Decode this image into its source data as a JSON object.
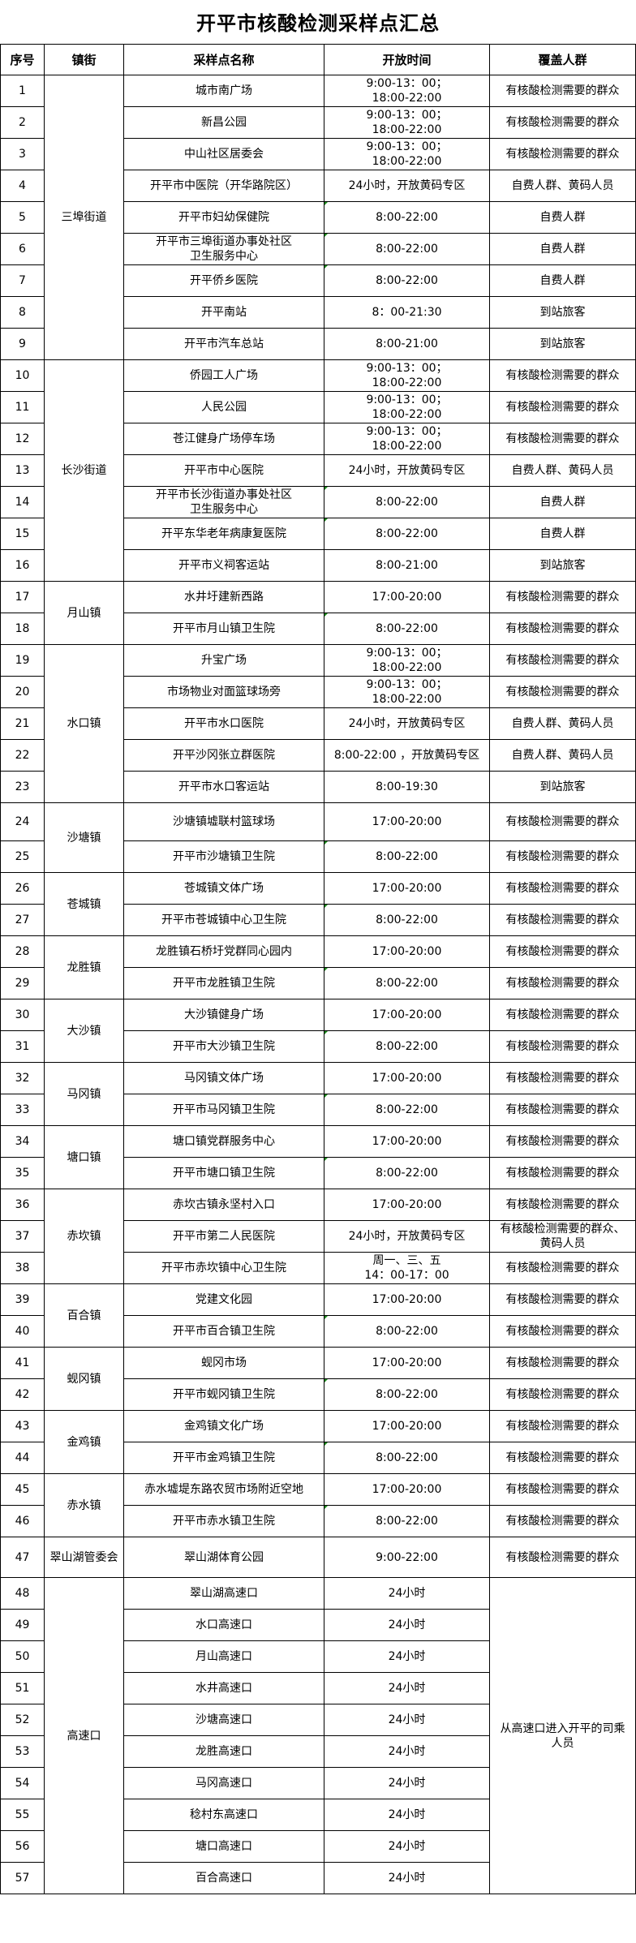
{
  "title": "开平市核酸检测采样点汇总",
  "headers": [
    "序号",
    "镇街",
    "采样点名称",
    "开放时间",
    "覆盖人群"
  ],
  "groups": [
    {
      "town": "三埠街道",
      "sites": [
        {
          "no": "1",
          "name": "城市南广场",
          "hours": "9:00-13：00；\n18:00-22:00",
          "coverage": "有核酸检测需要的群众",
          "mark": false
        },
        {
          "no": "2",
          "name": "新昌公园",
          "hours": "9:00-13：00；\n18:00-22:00",
          "coverage": "有核酸检测需要的群众",
          "mark": false
        },
        {
          "no": "3",
          "name": "中山社区居委会",
          "hours": "9:00-13：00；\n18:00-22:00",
          "coverage": "有核酸检测需要的群众",
          "mark": false
        },
        {
          "no": "4",
          "name": "开平市中医院（开华路院区）",
          "hours": "24小时，开放黄码专区",
          "coverage": "自费人群、黄码人员",
          "mark": false
        },
        {
          "no": "5",
          "name": "开平市妇幼保健院",
          "hours": "8:00-22:00",
          "coverage": "自费人群",
          "mark": true
        },
        {
          "no": "6",
          "name": "开平市三埠街道办事处社区\n卫生服务中心",
          "hours": "8:00-22:00",
          "coverage": "自费人群",
          "mark": true
        },
        {
          "no": "7",
          "name": "开平侨乡医院",
          "hours": "8:00-22:00",
          "coverage": "自费人群",
          "mark": true
        },
        {
          "no": "8",
          "name": "开平南站",
          "hours": "8：00-21:30",
          "coverage": "到站旅客",
          "mark": false
        },
        {
          "no": "9",
          "name": "开平市汽车总站",
          "hours": "8:00-21:00",
          "coverage": "到站旅客",
          "mark": false
        }
      ]
    },
    {
      "town": "长沙街道",
      "sites": [
        {
          "no": "10",
          "name": "侨园工人广场",
          "hours": "9:00-13：00；\n18:00-22:00",
          "coverage": "有核酸检测需要的群众",
          "mark": false
        },
        {
          "no": "11",
          "name": "人民公园",
          "hours": "9:00-13：00；\n18:00-22:00",
          "coverage": "有核酸检测需要的群众",
          "mark": false
        },
        {
          "no": "12",
          "name": "苍江健身广场停车场",
          "hours": "9:00-13：00；\n18:00-22:00",
          "coverage": "有核酸检测需要的群众",
          "mark": false
        },
        {
          "no": "13",
          "name": "开平市中心医院",
          "hours": "24小时，开放黄码专区",
          "coverage": "自费人群、黄码人员",
          "mark": false
        },
        {
          "no": "14",
          "name": "开平市长沙街道办事处社区\n卫生服务中心",
          "hours": "8:00-22:00",
          "coverage": "自费人群",
          "mark": true
        },
        {
          "no": "15",
          "name": "开平东华老年病康复医院",
          "hours": "8:00-22:00",
          "coverage": "自费人群",
          "mark": true
        },
        {
          "no": "16",
          "name": "开平市义祠客运站",
          "hours": "8:00-21:00",
          "coverage": "到站旅客",
          "mark": false
        }
      ]
    },
    {
      "town": "月山镇",
      "sites": [
        {
          "no": "17",
          "name": "水井圩建新西路",
          "hours": "17:00-20:00",
          "coverage": "有核酸检测需要的群众",
          "mark": false
        },
        {
          "no": "18",
          "name": "开平市月山镇卫生院",
          "hours": "8:00-22:00",
          "coverage": "有核酸检测需要的群众",
          "mark": true
        }
      ]
    },
    {
      "town": "水口镇",
      "sites": [
        {
          "no": "19",
          "name": "升宝广场",
          "hours": "9:00-13：00；\n18:00-22:00",
          "coverage": "有核酸检测需要的群众",
          "mark": false
        },
        {
          "no": "20",
          "name": "市场物业对面篮球场旁",
          "hours": "9:00-13：00；\n18:00-22:00",
          "coverage": "有核酸检测需要的群众",
          "mark": false
        },
        {
          "no": "21",
          "name": "开平市水口医院",
          "hours": "24小时，开放黄码专区",
          "coverage": "自费人群、黄码人员",
          "mark": false
        },
        {
          "no": "22",
          "name": "开平沙冈张立群医院",
          "hours": "8:00-22:00 ，开放黄码专区",
          "coverage": "自费人群、黄码人员",
          "mark": false
        },
        {
          "no": "23",
          "name": "开平市水口客运站",
          "hours": "8:00-19:30",
          "coverage": "到站旅客",
          "mark": false
        }
      ]
    },
    {
      "town": "沙塘镇",
      "sites": [
        {
          "no": "24",
          "name": "沙塘镇墟联村篮球场",
          "hours": "17:00-20:00",
          "coverage": "有核酸检测需要的群众",
          "mark": false
        },
        {
          "no": "25",
          "name": "开平市沙塘镇卫生院",
          "hours": "8:00-22:00",
          "coverage": "有核酸检测需要的群众",
          "mark": true
        }
      ]
    },
    {
      "town": "苍城镇",
      "sites": [
        {
          "no": "26",
          "name": "苍城镇文体广场",
          "hours": "17:00-20:00",
          "coverage": "有核酸检测需要的群众",
          "mark": false
        },
        {
          "no": "27",
          "name": "开平市苍城镇中心卫生院",
          "hours": "8:00-22:00",
          "coverage": "有核酸检测需要的群众",
          "mark": true
        }
      ]
    },
    {
      "town": "龙胜镇",
      "sites": [
        {
          "no": "28",
          "name": "龙胜镇石桥圩党群同心园内",
          "hours": "17:00-20:00",
          "coverage": "有核酸检测需要的群众",
          "mark": false
        },
        {
          "no": "29",
          "name": "开平市龙胜镇卫生院",
          "hours": "8:00-22:00",
          "coverage": "有核酸检测需要的群众",
          "mark": true
        }
      ]
    },
    {
      "town": "大沙镇",
      "sites": [
        {
          "no": "30",
          "name": "大沙镇健身广场",
          "hours": "17:00-20:00",
          "coverage": "有核酸检测需要的群众",
          "mark": false
        },
        {
          "no": "31",
          "name": "开平市大沙镇卫生院",
          "hours": "8:00-22:00",
          "coverage": "有核酸检测需要的群众",
          "mark": true
        }
      ]
    },
    {
      "town": "马冈镇",
      "sites": [
        {
          "no": "32",
          "name": "马冈镇文体广场",
          "hours": "17:00-20:00",
          "coverage": "有核酸检测需要的群众",
          "mark": false
        },
        {
          "no": "33",
          "name": "开平市马冈镇卫生院",
          "hours": "8:00-22:00",
          "coverage": "有核酸检测需要的群众",
          "mark": true
        }
      ]
    },
    {
      "town": "塘口镇",
      "sites": [
        {
          "no": "34",
          "name": "塘口镇党群服务中心",
          "hours": "17:00-20:00",
          "coverage": "有核酸检测需要的群众",
          "mark": false
        },
        {
          "no": "35",
          "name": "开平市塘口镇卫生院",
          "hours": "8:00-22:00",
          "coverage": "有核酸检测需要的群众",
          "mark": true
        }
      ]
    },
    {
      "town": "赤坎镇",
      "sites": [
        {
          "no": "36",
          "name": "赤坎古镇永坚村入口",
          "hours": "17:00-20:00",
          "coverage": "有核酸检测需要的群众",
          "mark": false
        },
        {
          "no": "37",
          "name": "开平市第二人民医院",
          "hours": "24小时，开放黄码专区",
          "coverage": "有核酸检测需要的群众、\n黄码人员",
          "mark": false
        },
        {
          "no": "38",
          "name": "开平市赤坎镇中心卫生院",
          "hours": "周一、三、五\n14：00-17：00",
          "coverage": "有核酸检测需要的群众",
          "mark": false
        }
      ]
    },
    {
      "town": "百合镇",
      "sites": [
        {
          "no": "39",
          "name": "党建文化园",
          "hours": "17:00-20:00",
          "coverage": "有核酸检测需要的群众",
          "mark": false
        },
        {
          "no": "40",
          "name": "开平市百合镇卫生院",
          "hours": "8:00-22:00",
          "coverage": "有核酸检测需要的群众",
          "mark": true
        }
      ]
    },
    {
      "town": "蚬冈镇",
      "sites": [
        {
          "no": "41",
          "name": "蚬冈市场",
          "hours": "17:00-20:00",
          "coverage": "有核酸检测需要的群众",
          "mark": false
        },
        {
          "no": "42",
          "name": "开平市蚬冈镇卫生院",
          "hours": "8:00-22:00",
          "coverage": "有核酸检测需要的群众",
          "mark": true
        }
      ]
    },
    {
      "town": "金鸡镇",
      "sites": [
        {
          "no": "43",
          "name": "金鸡镇文化广场",
          "hours": "17:00-20:00",
          "coverage": "有核酸检测需要的群众",
          "mark": false
        },
        {
          "no": "44",
          "name": "开平市金鸡镇卫生院",
          "hours": "8:00-22:00",
          "coverage": "有核酸检测需要的群众",
          "mark": true
        }
      ]
    },
    {
      "town": "赤水镇",
      "sites": [
        {
          "no": "45",
          "name": "赤水墟堤东路农贸市场附近空地",
          "hours": "17:00-20:00",
          "coverage": "有核酸检测需要的群众",
          "mark": false
        },
        {
          "no": "46",
          "name": "开平市赤水镇卫生院",
          "hours": "8:00-22:00",
          "coverage": "有核酸检测需要的群众",
          "mark": true
        }
      ]
    },
    {
      "town": "翠山湖管委会",
      "sites": [
        {
          "no": "47",
          "name": "翠山湖体育公园",
          "hours": "9:00-22:00",
          "coverage": "有核酸检测需要的群众",
          "mark": false
        }
      ]
    },
    {
      "town": "高速口",
      "coverage_merged": "从高速口进入开平的司乘\n人员",
      "sites": [
        {
          "no": "48",
          "name": "翠山湖高速口",
          "hours": "24小时",
          "mark": false
        },
        {
          "no": "49",
          "name": "水口高速口",
          "hours": "24小时",
          "mark": false
        },
        {
          "no": "50",
          "name": "月山高速口",
          "hours": "24小时",
          "mark": false
        },
        {
          "no": "51",
          "name": "水井高速口",
          "hours": "24小时",
          "mark": false
        },
        {
          "no": "52",
          "name": "沙塘高速口",
          "hours": "24小时",
          "mark": false
        },
        {
          "no": "53",
          "name": "龙胜高速口",
          "hours": "24小时",
          "mark": false
        },
        {
          "no": "54",
          "name": "马冈高速口",
          "hours": "24小时",
          "mark": false
        },
        {
          "no": "55",
          "name": "稔村东高速口",
          "hours": "24小时",
          "mark": false
        },
        {
          "no": "56",
          "name": "塘口高速口",
          "hours": "24小时",
          "mark": false
        },
        {
          "no": "57",
          "name": "百合高速口",
          "hours": "24小时",
          "mark": false
        }
      ]
    }
  ],
  "colors": {
    "border": "#000000",
    "note_marker": "#1a8a1a"
  }
}
